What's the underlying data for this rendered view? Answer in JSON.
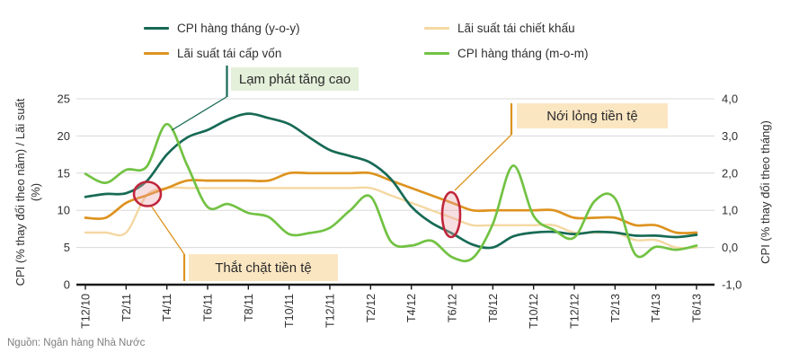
{
  "source": "Nguồn: Ngân hàng Nhà Nước",
  "colors": {
    "grid": "#d9d9d9",
    "axis": "#1a1a1a",
    "tick_text": "#303030",
    "source_text": "#7f7f7f",
    "ellipse_stroke": "#c0263b",
    "ellipse_fill": "rgba(233,160,170,0.35)"
  },
  "legend": {
    "items": [
      {
        "label": "CPI hàng tháng (y-o-y)",
        "series": 0
      },
      {
        "label": "Lãi suất tái chiết khấu",
        "series": 2
      },
      {
        "label": "Lãi suất tái cấp vốn",
        "series": 1
      },
      {
        "label": "CPI hàng tháng (m-o-m)",
        "series": 3
      }
    ]
  },
  "chart_data": {
    "type": "line",
    "grid": true,
    "x_months": [
      "T12/10",
      "T1/11",
      "T2/11",
      "T3/11",
      "T4/11",
      "T5/11",
      "T6/11",
      "T7/11",
      "T8/11",
      "T9/11",
      "T10/11",
      "T11/11",
      "T12/11",
      "T1/12",
      "T2/12",
      "T3/12",
      "T4/12",
      "T5/12",
      "T6/12",
      "T7/12",
      "T8/12",
      "T9/12",
      "T10/12",
      "T11/12",
      "T12/12",
      "T1/13",
      "T2/13",
      "T3/13",
      "T4/13",
      "T5/13",
      "T6/13"
    ],
    "x_tick_labels": [
      "T12/10",
      "T2/11",
      "T4/11",
      "T6/11",
      "T8/11",
      "T10/11",
      "T12/11",
      "T2/12",
      "T4/12",
      "T6/12",
      "T8/12",
      "T10/12",
      "T12/12",
      "T2/13",
      "T4/13",
      "T6/13"
    ],
    "left_axis": {
      "title_line1": "CPI (% thay đổi theo năm) / Lãi suất",
      "title_line2": "(%)",
      "ticks": [
        "0",
        "5",
        "10",
        "15",
        "20",
        "25"
      ],
      "tick_values": [
        0,
        5,
        10,
        15,
        20,
        25
      ],
      "range": [
        0,
        25
      ]
    },
    "right_axis": {
      "title": "CPI (% thay đổi theo tháng)",
      "ticks": [
        "-1,0",
        "0,0",
        "1,0",
        "2,0",
        "3,0",
        "4,0"
      ],
      "tick_values": [
        -1,
        0,
        1,
        2,
        3,
        4
      ],
      "range": [
        -1,
        4
      ]
    },
    "series": [
      {
        "name": "CPI hàng tháng (y-o-y)",
        "axis": "left",
        "color": "#176a55",
        "values": [
          11.8,
          12.2,
          12.3,
          13.9,
          17.5,
          19.8,
          20.8,
          22.2,
          23.0,
          22.4,
          21.6,
          19.8,
          18.1,
          17.3,
          16.4,
          14.2,
          10.5,
          8.3,
          6.9,
          5.4,
          5.0,
          6.5,
          7.0,
          7.1,
          6.8,
          7.1,
          7.0,
          6.6,
          6.6,
          6.4,
          6.7
        ]
      },
      {
        "name": "Lãi suất tái cấp vốn",
        "axis": "left",
        "color": "#dd931f",
        "values": [
          9,
          9,
          11,
          12,
          13,
          14,
          14,
          14,
          14,
          14,
          15,
          15,
          15,
          15,
          15,
          14,
          13,
          12,
          11,
          10,
          10,
          10,
          10,
          10,
          9,
          9,
          9,
          8,
          8,
          7,
          7
        ]
      },
      {
        "name": "Lãi suất tái chiết khấu",
        "axis": "left",
        "color": "#f4d8a2",
        "values": [
          7,
          7,
          7,
          12,
          13,
          13,
          13,
          13,
          13,
          13,
          13,
          13,
          13,
          13,
          13,
          12,
          11,
          10,
          9,
          8,
          8,
          8,
          8,
          8,
          7,
          7,
          7,
          6,
          6,
          5,
          5
        ]
      },
      {
        "name": "CPI hàng tháng (m-o-m)",
        "axis": "right",
        "color": "#72c243",
        "values": [
          1.98,
          1.74,
          2.09,
          2.17,
          3.32,
          2.21,
          1.09,
          1.17,
          0.93,
          0.82,
          0.36,
          0.39,
          0.53,
          1.0,
          1.37,
          0.16,
          0.05,
          0.18,
          -0.26,
          -0.29,
          0.63,
          2.2,
          0.85,
          0.47,
          0.27,
          1.25,
          1.32,
          -0.19,
          0.02,
          -0.06,
          0.05
        ]
      }
    ],
    "annotations": [
      {
        "text": "Lạm phát tăng cao",
        "fill": "#e4f0da",
        "accent": "#176a55"
      },
      {
        "text": "Nới lỏng tiền tệ",
        "fill": "#fbe6c2",
        "accent": "#dd931f"
      },
      {
        "text": "Thắt chặt tiền tệ",
        "fill": "#fbe6c2",
        "accent": "#dd931f"
      }
    ],
    "highlights": [
      "ellipse over rate hike / CPI crossing early 2011",
      "ellipse over rate cuts mid 2012"
    ]
  }
}
